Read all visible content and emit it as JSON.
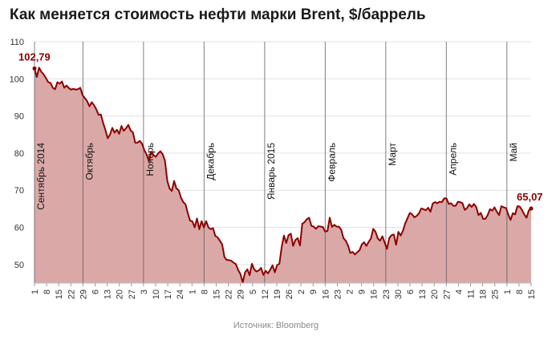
{
  "title": "Как меняется стоимость нефти марки Brent, $/баррель",
  "source": "Источник: Bloomberg",
  "colors": {
    "line": "#8b0000",
    "area": "#dba8a8",
    "grid": "#e3e3e3",
    "month_line": "#555555",
    "annotation": "#8b0000",
    "axis_text": "#333333"
  },
  "chart_data": {
    "type": "area",
    "ylim": [
      45,
      110
    ],
    "yticks": [
      50,
      60,
      70,
      80,
      90,
      100,
      110
    ],
    "xticks": [
      "1",
      "8",
      "15",
      "22",
      "29",
      "6",
      "13",
      "20",
      "27",
      "3",
      "10",
      "17",
      "24",
      "1",
      "8",
      "15",
      "22",
      "29",
      "5",
      "12",
      "19",
      "26",
      "2",
      "9",
      "16",
      "23",
      "2",
      "9",
      "16",
      "23",
      "30",
      "6",
      "13",
      "20",
      "27",
      "4",
      "11",
      "18",
      "25",
      "1",
      "8",
      "15"
    ],
    "months": [
      {
        "label": "Сентябрь 2014",
        "at_tick": 0
      },
      {
        "label": "Октябрь",
        "at_tick": 4
      },
      {
        "label": "Ноябрь",
        "at_tick": 9
      },
      {
        "label": "Декабрь",
        "at_tick": 14
      },
      {
        "label": "Январь 2015",
        "at_tick": 19
      },
      {
        "label": "Февраль",
        "at_tick": 24
      },
      {
        "label": "Март",
        "at_tick": 29
      },
      {
        "label": "Апрель",
        "at_tick": 34
      },
      {
        "label": "Май",
        "at_tick": 39
      }
    ],
    "annotations": [
      {
        "text": "102,79",
        "point": 0
      },
      {
        "text": "65,07",
        "point": -1
      }
    ],
    "y": [
      102.79,
      100.5,
      103.0,
      101.9,
      101.2,
      100.2,
      99.1,
      98.9,
      97.6,
      97.2,
      99.1,
      98.7,
      99.3,
      97.6,
      98.2,
      97.5,
      97.1,
      97.3,
      97.1,
      97.2,
      97.6,
      95.6,
      94.8,
      94.0,
      92.6,
      93.7,
      92.9,
      91.8,
      90.3,
      90.4,
      88.1,
      86.2,
      84.0,
      85.0,
      86.8,
      85.5,
      86.3,
      85.2,
      87.3,
      86.0,
      86.7,
      87.6,
      86.1,
      85.6,
      82.8,
      82.8,
      83.3,
      82.5,
      80.8,
      79.6,
      77.8,
      80.4,
      79.5,
      79.0,
      79.9,
      80.5,
      79.7,
      78.0,
      72.6,
      70.5,
      69.8,
      72.5,
      70.5,
      70.0,
      68.0,
      66.8,
      66.2,
      63.8,
      61.8,
      61.6,
      60.0,
      62.4,
      59.5,
      61.7,
      60.0,
      61.7,
      60.0,
      59.5,
      59.8,
      57.7,
      57.3,
      56.4,
      55.4,
      52.0,
      51.2,
      51.2,
      51.0,
      50.5,
      50.1,
      48.5,
      47.4,
      45.2,
      47.9,
      48.7,
      47.1,
      50.2,
      48.7,
      48.1,
      48.4,
      49.1,
      47.2,
      48.3,
      47.6,
      48.6,
      49.8,
      47.9,
      49.8,
      50.2,
      54.7,
      57.8,
      55.8,
      57.9,
      58.3,
      55.0,
      56.6,
      57.1,
      55.1,
      61.0,
      61.4,
      62.2,
      62.6,
      60.4,
      60.2,
      59.6,
      60.3,
      60.2,
      60.1,
      58.9,
      59.0,
      62.6,
      60.1,
      60.7,
      60.2,
      60.2,
      59.4,
      57.1,
      56.4,
      55.1,
      53.1,
      53.4,
      52.7,
      53.3,
      53.8,
      55.4,
      56.0,
      55.0,
      56.1,
      57.0,
      59.6,
      58.8,
      57.0,
      56.4,
      57.6,
      55.9,
      54.2,
      57.1,
      57.9,
      58.1,
      55.3,
      58.8,
      57.8,
      59.1,
      61.1,
      62.5,
      63.9,
      63.5,
      62.7,
      63.1,
      63.8,
      65.1,
      64.9,
      64.6,
      65.3,
      64.2,
      66.4,
      66.8,
      66.5,
      66.9,
      66.8,
      67.8,
      67.8,
      66.3,
      66.5,
      65.8,
      65.8,
      66.9,
      66.8,
      66.5,
      64.7,
      65.2,
      66.2,
      65.5,
      66.3,
      65.5,
      63.3,
      63.9,
      62.3,
      62.3,
      63.3,
      64.9,
      64.5,
      65.4,
      64.2,
      63.3,
      65.7,
      65.4,
      65.2,
      63.5,
      62.0,
      63.8,
      63.5,
      65.7,
      65.6,
      64.7,
      63.5,
      62.6,
      64.6,
      65.07
    ]
  }
}
